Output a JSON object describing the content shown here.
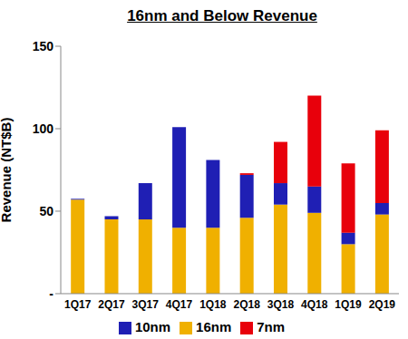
{
  "chart_data": {
    "type": "bar",
    "title": "16nm and Below Revenue",
    "y_label": "Revenue (NT$B)",
    "categories": [
      "1Q17",
      "2Q17",
      "3Q17",
      "4Q17",
      "1Q18",
      "2Q18",
      "3Q18",
      "4Q18",
      "1Q19",
      "2Q19"
    ],
    "series": [
      {
        "name": "16nm",
        "color": "#f0b000",
        "values": [
          57,
          45,
          45,
          40,
          40,
          46,
          54,
          49,
          30,
          48
        ]
      },
      {
        "name": "10nm",
        "color": "#1f1fb4",
        "values": [
          0.5,
          2,
          22,
          61,
          41,
          26,
          13,
          16,
          7,
          7
        ]
      },
      {
        "name": "7nm",
        "color": "#e8000b",
        "values": [
          0,
          0,
          0,
          0,
          0,
          1,
          25,
          55,
          42,
          44
        ]
      }
    ],
    "ylim": [
      0,
      150
    ],
    "yticks": [
      {
        "value": 0,
        "label": "-"
      },
      50,
      100,
      150
    ],
    "stacked": true,
    "grid": false,
    "legend": "bottom"
  }
}
